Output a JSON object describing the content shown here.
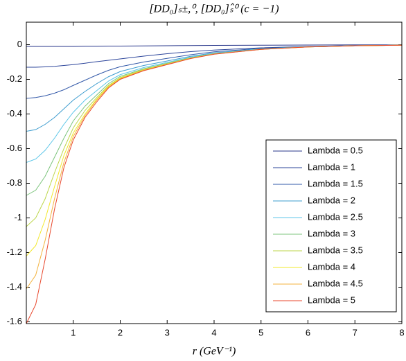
{
  "chart_data": {
    "type": "line",
    "title": "[DD₀]ₛ±,⁰, [DD₀]ₛ̂⁰ (c = −1)",
    "xlabel": "r (GeV⁻¹)",
    "x": [
      0,
      0.2,
      0.4,
      0.6,
      0.8,
      1,
      1.25,
      1.5,
      1.75,
      2,
      2.5,
      3,
      3.5,
      4,
      5,
      6,
      7,
      8
    ],
    "xlim": [
      0,
      8
    ],
    "xticks": [
      1,
      2,
      3,
      4,
      5,
      6,
      7,
      8
    ],
    "ylim": [
      -1.61,
      0.13
    ],
    "yticks": [
      0,
      -0.2,
      -0.4,
      -0.6,
      -0.8,
      -1,
      -1.2,
      -1.4,
      -1.6
    ],
    "legend": "lower right",
    "series": [
      {
        "name": "Lambda = 0.5",
        "color": "#27358a",
        "values": [
          -0.01,
          -0.01,
          -0.01,
          -0.01,
          -0.01,
          -0.01,
          -0.009,
          -0.009,
          -0.008,
          -0.008,
          -0.007,
          -0.006,
          -0.005,
          -0.004,
          -0.003,
          -0.002,
          -0.001,
          -0.001
        ]
      },
      {
        "name": "Lambda = 1",
        "color": "#2b449a",
        "values": [
          -0.13,
          -0.13,
          -0.128,
          -0.125,
          -0.12,
          -0.115,
          -0.107,
          -0.098,
          -0.09,
          -0.082,
          -0.066,
          -0.052,
          -0.04,
          -0.031,
          -0.018,
          -0.01,
          -0.005,
          -0.003
        ]
      },
      {
        "name": "Lambda = 1.5",
        "color": "#3258a8",
        "values": [
          -0.31,
          -0.305,
          -0.295,
          -0.28,
          -0.26,
          -0.235,
          -0.205,
          -0.175,
          -0.148,
          -0.127,
          -0.1,
          -0.079,
          -0.058,
          -0.041,
          -0.021,
          -0.011,
          -0.005,
          -0.003
        ]
      },
      {
        "name": "Lambda = 2",
        "color": "#3d9ccf",
        "values": [
          -0.5,
          -0.49,
          -0.46,
          -0.42,
          -0.37,
          -0.32,
          -0.27,
          -0.225,
          -0.185,
          -0.155,
          -0.12,
          -0.094,
          -0.067,
          -0.047,
          -0.024,
          -0.012,
          -0.006,
          -0.003
        ]
      },
      {
        "name": "Lambda = 2.5",
        "color": "#5cc6e8",
        "values": [
          -0.68,
          -0.66,
          -0.61,
          -0.54,
          -0.46,
          -0.39,
          -0.32,
          -0.265,
          -0.21,
          -0.173,
          -0.132,
          -0.102,
          -0.072,
          -0.05,
          -0.025,
          -0.012,
          -0.006,
          -0.003
        ]
      },
      {
        "name": "Lambda = 3",
        "color": "#7cc47c",
        "values": [
          -0.87,
          -0.84,
          -0.76,
          -0.65,
          -0.54,
          -0.44,
          -0.355,
          -0.29,
          -0.225,
          -0.183,
          -0.139,
          -0.107,
          -0.075,
          -0.052,
          -0.026,
          -0.013,
          -0.006,
          -0.003
        ]
      },
      {
        "name": "Lambda = 3.5",
        "color": "#bcd64a",
        "values": [
          -1.05,
          -1.0,
          -0.89,
          -0.74,
          -0.6,
          -0.48,
          -0.38,
          -0.305,
          -0.235,
          -0.19,
          -0.143,
          -0.11,
          -0.077,
          -0.053,
          -0.027,
          -0.013,
          -0.006,
          -0.003
        ]
      },
      {
        "name": "Lambda = 4",
        "color": "#f2e82a",
        "values": [
          -1.22,
          -1.16,
          -1.01,
          -0.82,
          -0.64,
          -0.51,
          -0.4,
          -0.315,
          -0.24,
          -0.194,
          -0.146,
          -0.112,
          -0.078,
          -0.054,
          -0.027,
          -0.013,
          -0.006,
          -0.003
        ]
      },
      {
        "name": "Lambda = 4.5",
        "color": "#f3b23c",
        "values": [
          -1.41,
          -1.33,
          -1.13,
          -0.89,
          -0.68,
          -0.53,
          -0.41,
          -0.32,
          -0.245,
          -0.197,
          -0.148,
          -0.113,
          -0.079,
          -0.054,
          -0.027,
          -0.013,
          -0.006,
          -0.003
        ]
      },
      {
        "name": "Lambda = 5",
        "color": "#e8472c",
        "values": [
          -1.61,
          -1.5,
          -1.24,
          -0.95,
          -0.71,
          -0.55,
          -0.42,
          -0.33,
          -0.25,
          -0.2,
          -0.15,
          -0.115,
          -0.08,
          -0.055,
          -0.027,
          -0.013,
          -0.006,
          -0.003
        ]
      }
    ]
  }
}
